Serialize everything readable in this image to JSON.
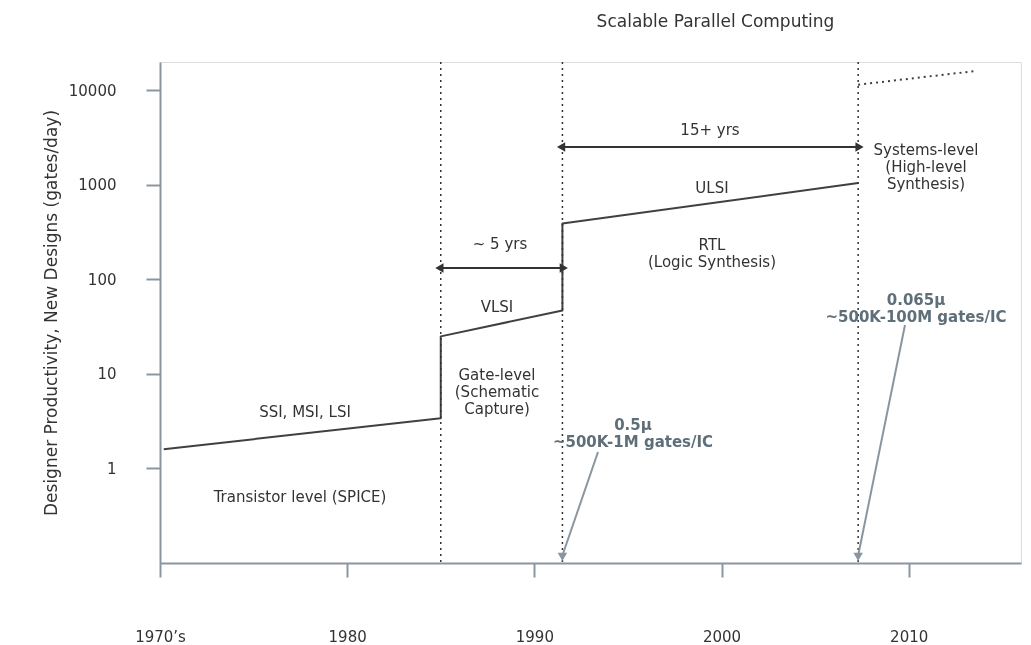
{
  "chart_data": {
    "type": "line",
    "title": "Scalable Parallel Computing",
    "ylabel": "Designer Productivity, New Designs (gates/day)",
    "log": "y",
    "grid": false,
    "marker": "none",
    "xlim": [
      1970,
      2016
    ],
    "xticks": [
      {
        "value": 1970,
        "label": "1970’s"
      },
      1980,
      1990,
      2000,
      2010
    ],
    "ylim": [
      0.1,
      20000
    ],
    "yticks": [
      1,
      10,
      100,
      1000,
      10000
    ],
    "series": [
      {
        "color": "#404040",
        "line_style": "solid",
        "x": [
          1970.2,
          1985,
          1985,
          1991.5,
          1991.5,
          2007.3
        ],
        "values": [
          1.6,
          3.4,
          25,
          47,
          390,
          1050
        ]
      },
      {
        "color": "#404040",
        "line_style": "dotted",
        "x": [
          2007.3,
          2013.5
        ],
        "values": [
          11500,
          16000
        ]
      }
    ],
    "ref_lines": [
      {
        "axis": "x",
        "value": 1985,
        "line_style": "dotted",
        "color": "#333333"
      },
      {
        "axis": "x",
        "value": 1991.5,
        "line_style": "dotted",
        "color": "#333333"
      },
      {
        "axis": "x",
        "value": 2007.3,
        "line_style": "dotted",
        "color": "#333333"
      }
    ],
    "annotations": [
      "SSI, MSI, LSI",
      "Transistor level (SPICE)",
      "VLSI",
      "Gate-level\n(Schematic\nCapture)",
      "~ 5 yrs",
      "15+ yrs",
      "ULSI",
      "RTL\n(Logic Synthesis)",
      "Systems-level\n(High-level\nSynthesis)",
      {
        "text": "0.5μ\n~500K-1M gates/IC",
        "x": 1991.5,
        "y": 0.12
      },
      {
        "text": "0.065μ\n~500K-100M gates/IC",
        "x": 2007.3,
        "y": 0.12
      }
    ]
  }
}
